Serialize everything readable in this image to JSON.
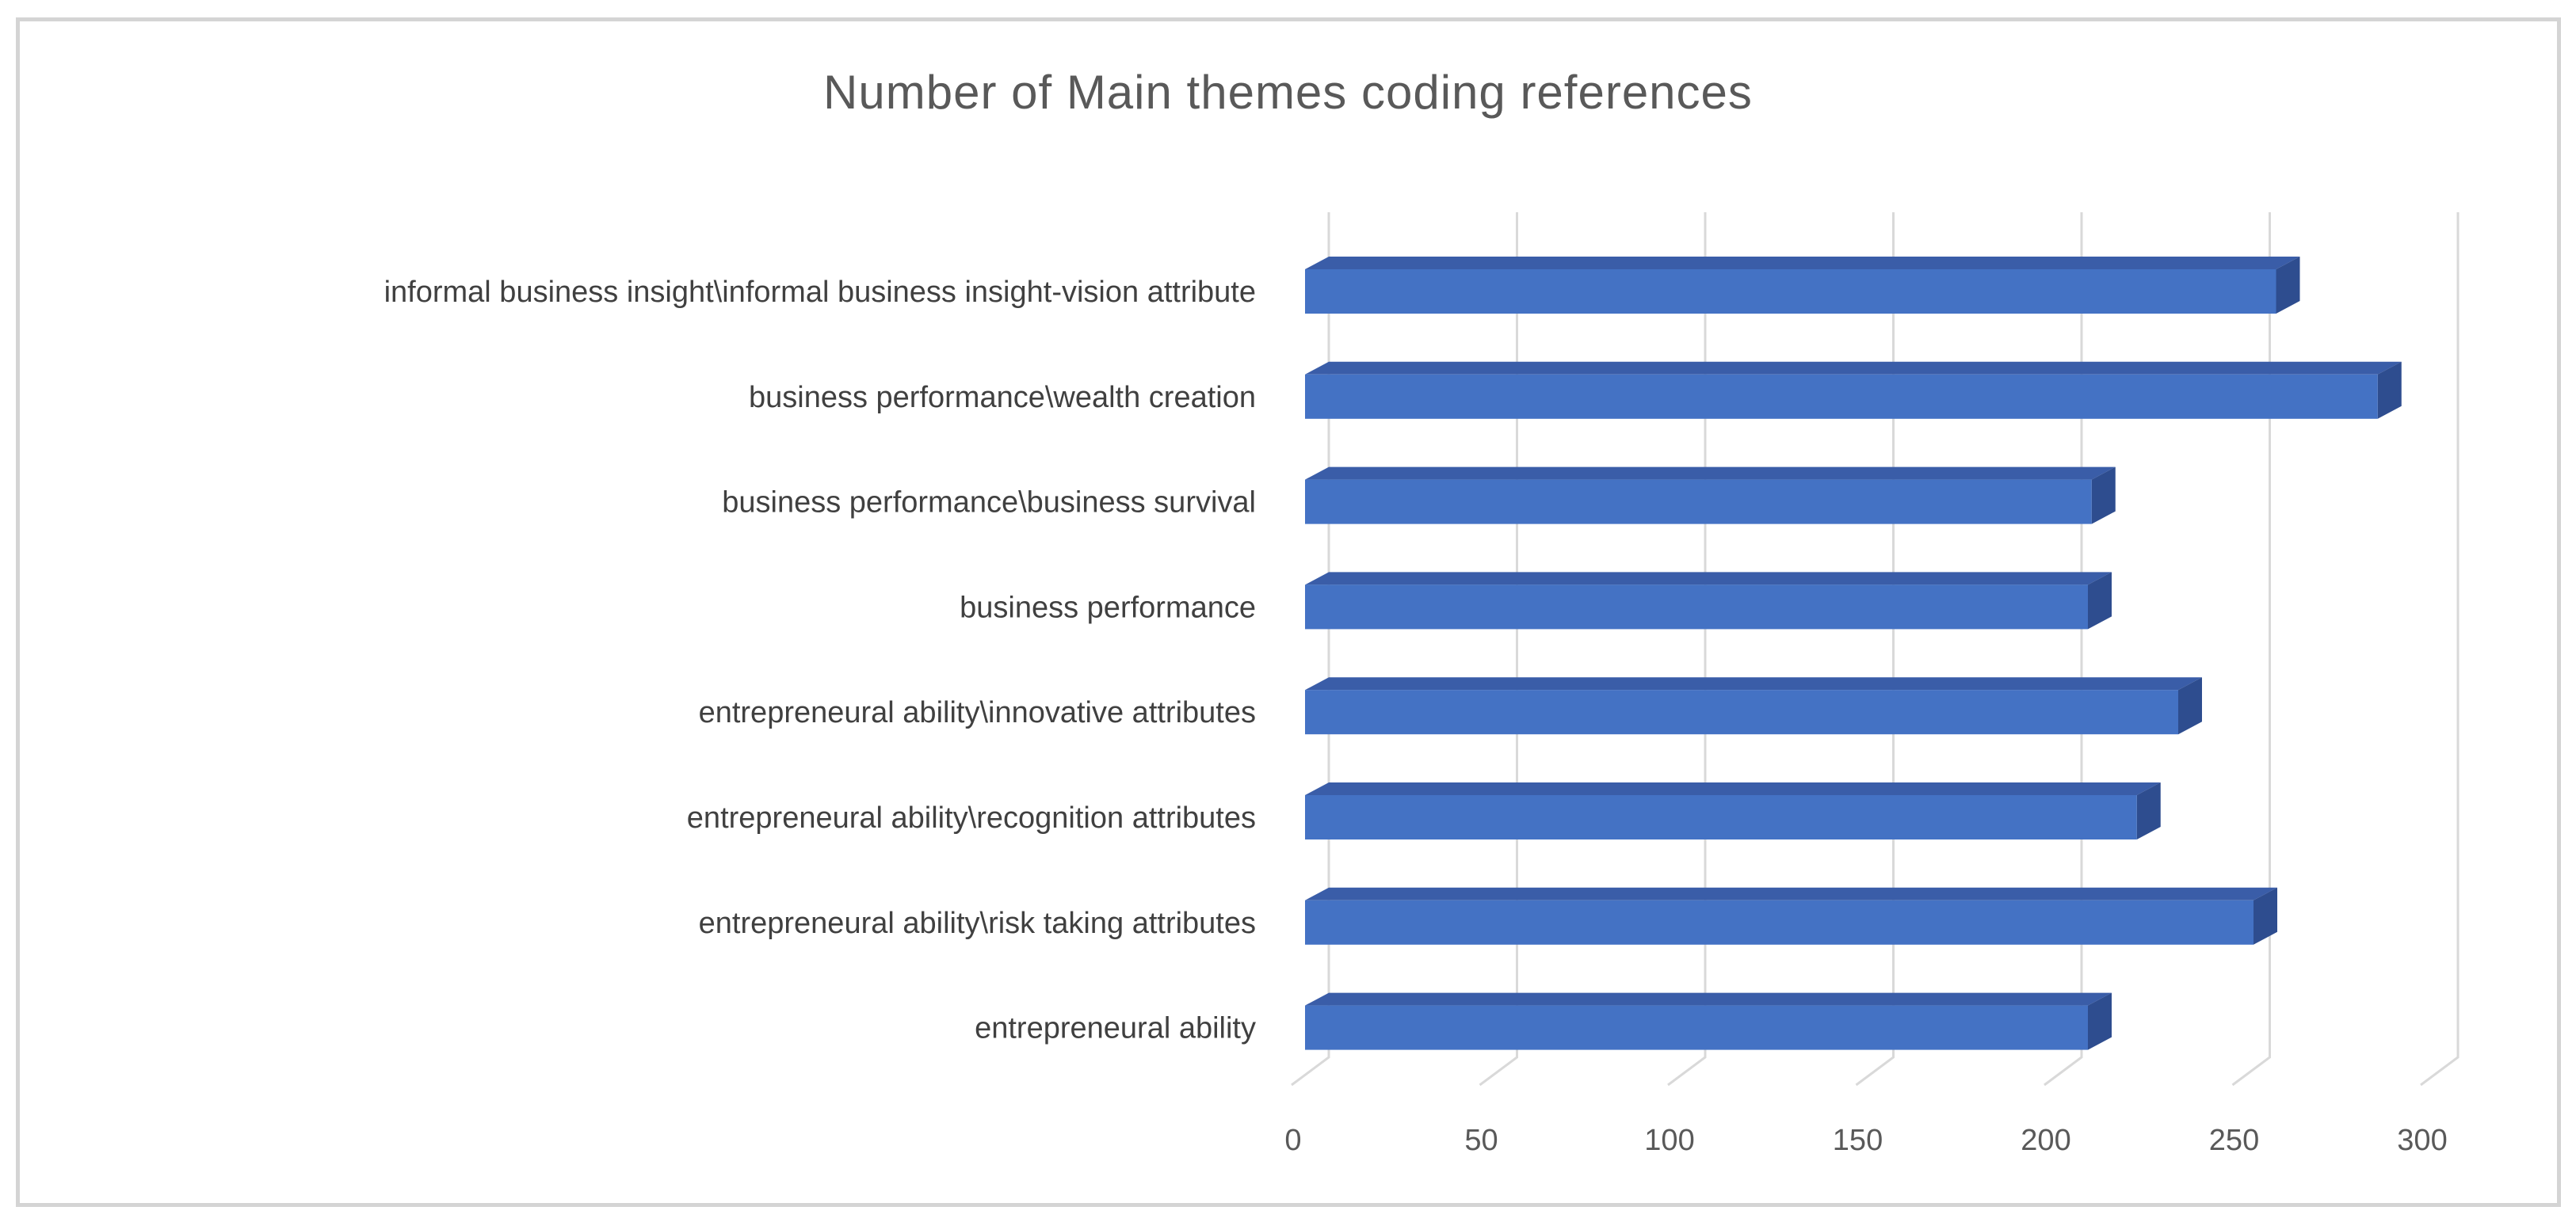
{
  "chart_data": {
    "type": "bar",
    "orientation": "horizontal",
    "style": "3d",
    "title": "Number of Main themes coding references",
    "categories": [
      "informal business insight\\informal business insight-vision attribute",
      "business performance\\wealth creation",
      "business performance\\business survival",
      "business performance",
      "entrepreneural ability\\innovative attributes",
      "entrepreneural ability\\recognition attributes",
      "entrepreneural ability\\risk taking attributes",
      "entrepreneural ability"
    ],
    "values": [
      258,
      285,
      209,
      208,
      232,
      221,
      252,
      208
    ],
    "xlabel": "",
    "ylabel": "",
    "xlim": [
      0,
      300
    ],
    "x_ticks": [
      0,
      50,
      100,
      150,
      200,
      250,
      300
    ],
    "grid": true,
    "legend": false,
    "colors": {
      "bar_front": "#4472c4",
      "bar_top": "#3a5da8",
      "bar_side": "#2e4d8f",
      "gridline": "#d9d9d9",
      "tick_label": "#595959",
      "category_label": "#404040",
      "title": "#595959",
      "frame_border": "#d4d4d4"
    }
  }
}
